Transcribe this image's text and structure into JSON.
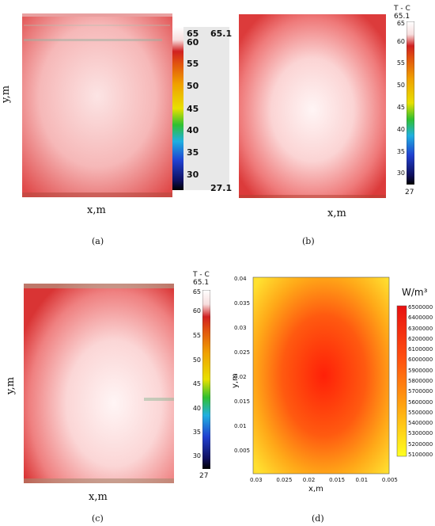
{
  "panels": {
    "a": {
      "label": "(a)",
      "xlabel": "x,m",
      "ylabel": "y,m"
    },
    "b": {
      "label": "(b)",
      "xlabel": "x,m"
    },
    "c": {
      "label": "(c)",
      "xlabel": "x,m",
      "ylabel": "y,m"
    },
    "d": {
      "label": "(d)",
      "xlabel": "x,m",
      "ylabel": "y,m"
    }
  },
  "chart_data": [
    {
      "type": "heatmap",
      "panel": "a",
      "xlabel": "x,m",
      "ylabel": "y,m",
      "colorbar": {
        "min": 27.1,
        "max": 65.1,
        "ticks": [
          65.0,
          60.0,
          55.0,
          50.0,
          45.0,
          40.0,
          35.0,
          30.0
        ],
        "min_label": "27.1",
        "max_label": "65.1"
      }
    },
    {
      "type": "heatmap",
      "panel": "b",
      "xlabel": "x,m",
      "colorbar": {
        "title": "T - C",
        "min": 27,
        "max": 65.1,
        "ticks": [
          65,
          60,
          55,
          50,
          45,
          40,
          35,
          30
        ],
        "min_label": "27",
        "max_label": "65.1"
      }
    },
    {
      "type": "heatmap",
      "panel": "c",
      "xlabel": "x,m",
      "ylabel": "y,m",
      "colorbar": {
        "title": "T - C",
        "min": 27,
        "max": 65.1,
        "ticks": [
          65,
          60,
          55,
          50,
          45,
          40,
          35,
          30
        ],
        "min_label": "27",
        "max_label": "65.1"
      }
    },
    {
      "type": "heatmap",
      "panel": "d",
      "xlabel": "x,m",
      "ylabel": "y,m",
      "x_ticks": [
        "0.03",
        "0.025",
        "0.02",
        "0.015",
        "0.01",
        "0.005"
      ],
      "y_ticks": [
        "0.04",
        "0.035",
        "0.03",
        "0.025",
        "0.02",
        "0.015",
        "0.01",
        "0.005"
      ],
      "colorbar": {
        "title": "W/m³",
        "ticks": [
          "6500000",
          "6400000",
          "6300000",
          "6200000",
          "6100000",
          "6000000",
          "5900000",
          "5800000",
          "5700000",
          "5600000",
          "5500000",
          "5400000",
          "5300000",
          "5200000",
          "5100000"
        ]
      }
    }
  ],
  "colors": {
    "hot": "#ff2a10",
    "warm": "#ffd000",
    "cool": "#ffff30"
  }
}
